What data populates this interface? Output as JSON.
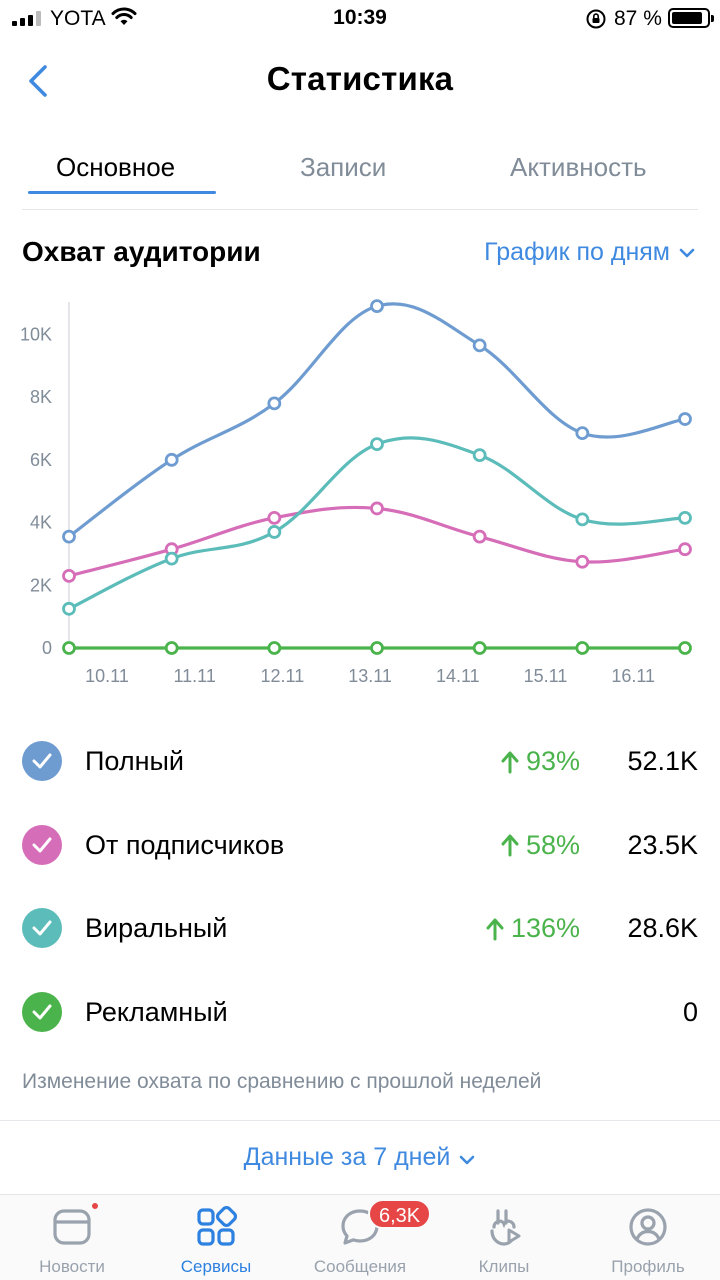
{
  "status_bar": {
    "carrier": "YOTA",
    "time": "10:39",
    "battery_percent": "87 %",
    "battery_level": 0.87
  },
  "header": {
    "title": "Статистика",
    "back_icon": "chevron-left-icon"
  },
  "tabs": [
    {
      "label": "Основное",
      "active": true
    },
    {
      "label": "Записи",
      "active": false
    },
    {
      "label": "Активность",
      "active": false
    }
  ],
  "section": {
    "title": "Охват аудитории",
    "period_select": "График по дням"
  },
  "colors": {
    "accent": "#3f8ae0",
    "full": "#6e9cd1",
    "subscribers": "#d66db8",
    "viral": "#5bbcb9",
    "ads": "#4bb34b",
    "positive": "#4bb34b",
    "muted": "#818c99",
    "badge": "#e64646"
  },
  "chart_data": {
    "type": "line",
    "categories": [
      "10.11",
      "11.11",
      "12.11",
      "13.11",
      "14.11",
      "15.11",
      "16.11"
    ],
    "y_ticks": [
      "0",
      "2K",
      "4K",
      "6K",
      "8K",
      "10K"
    ],
    "ylim": [
      0,
      11000
    ],
    "series": [
      {
        "name": "Полный",
        "color": "#6e9cd1",
        "values": [
          3550,
          6000,
          7800,
          10900,
          9650,
          6850,
          7300
        ]
      },
      {
        "name": "От подписчиков",
        "color": "#d66db8",
        "values": [
          2300,
          3150,
          4150,
          4450,
          3550,
          2750,
          3150
        ]
      },
      {
        "name": "Виральный",
        "color": "#5bbcb9",
        "values": [
          1250,
          2850,
          3700,
          6500,
          6150,
          4100,
          4150
        ]
      },
      {
        "name": "Рекламный",
        "color": "#4bb34b",
        "values": [
          0,
          0,
          0,
          0,
          0,
          0,
          0
        ]
      }
    ]
  },
  "legend": [
    {
      "name": "Полный",
      "change": "93%",
      "value": "52.1K",
      "color": "#6e9cd1",
      "has_change": true
    },
    {
      "name": "От подписчиков",
      "change": "58%",
      "value": "23.5K",
      "color": "#d66db8",
      "has_change": true
    },
    {
      "name": "Виральный",
      "change": "136%",
      "value": "28.6K",
      "color": "#5bbcb9",
      "has_change": true
    },
    {
      "name": "Рекламный",
      "change": "",
      "value": "0",
      "color": "#4bb34b",
      "has_change": false
    }
  ],
  "footnote": "Изменение охвата по сравнению с прошлой неделей",
  "days_select": "Данные за 7 дней",
  "tabbar": [
    {
      "label": "Новости",
      "icon": "news-icon",
      "active": false,
      "dot": true
    },
    {
      "label": "Сервисы",
      "icon": "services-icon",
      "active": true
    },
    {
      "label": "Сообщения",
      "icon": "messages-icon",
      "active": false,
      "badge": "6,3K"
    },
    {
      "label": "Клипы",
      "icon": "clips-icon",
      "active": false
    },
    {
      "label": "Профиль",
      "icon": "profile-icon",
      "active": false
    }
  ]
}
